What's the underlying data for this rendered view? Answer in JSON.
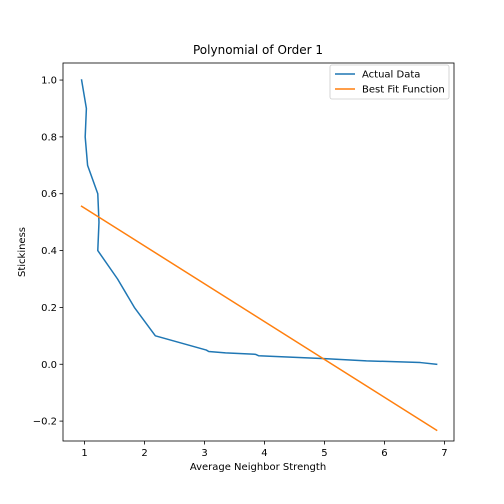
{
  "chart_data": {
    "type": "line",
    "title": "Polynomial of Order 1",
    "xlabel": "Average Neighbor Strength",
    "ylabel": "Stickiness",
    "xlim": [
      0.64,
      7.16
    ],
    "ylim": [
      -0.27,
      1.06
    ],
    "xticks": [
      1,
      2,
      3,
      4,
      5,
      6,
      7
    ],
    "yticks": [
      -0.2,
      0.0,
      0.2,
      0.4,
      0.6,
      0.8,
      1.0
    ],
    "xtick_labels": [
      "1",
      "2",
      "3",
      "4",
      "5",
      "6",
      "7"
    ],
    "ytick_labels": [
      "−0.2",
      "0.0",
      "0.2",
      "0.4",
      "0.6",
      "0.8",
      "1.0"
    ],
    "grid": false,
    "legend_position": "top-right",
    "series": [
      {
        "name": "Actual Data",
        "color": "#1f77b4",
        "x": [
          0.95,
          1.03,
          1.01,
          1.05,
          1.22,
          1.24,
          1.22,
          1.55,
          1.83,
          2.18,
          3.03,
          3.07,
          3.35,
          3.85,
          3.9,
          5.0,
          5.7,
          6.6,
          6.87
        ],
        "y": [
          1.0,
          0.9,
          0.8,
          0.7,
          0.6,
          0.5,
          0.4,
          0.3,
          0.2,
          0.1,
          0.05,
          0.045,
          0.04,
          0.035,
          0.03,
          0.02,
          0.012,
          0.006,
          0.0
        ]
      },
      {
        "name": "Best Fit Function",
        "color": "#ff7f0e",
        "x": [
          0.95,
          6.87
        ],
        "y": [
          0.556,
          -0.232
        ]
      }
    ]
  }
}
